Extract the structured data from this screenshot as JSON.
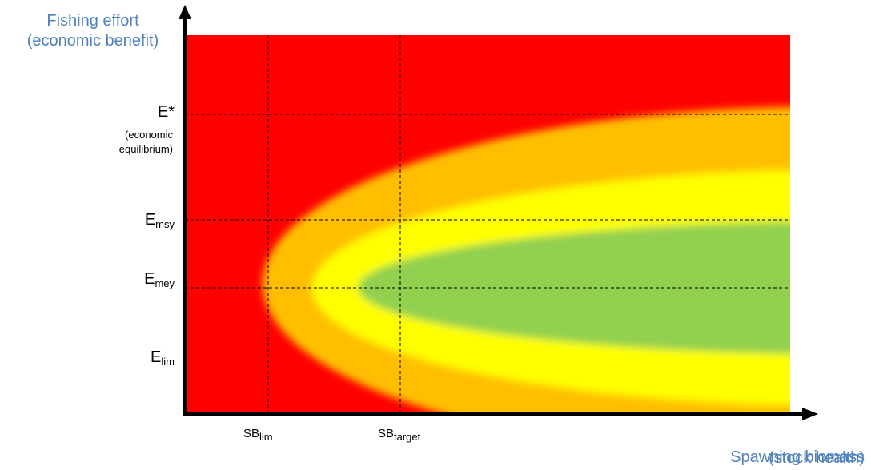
{
  "y_axis": {
    "title_line1": "Fishing effort",
    "title_line2": "(economic benefit)"
  },
  "x_axis": {
    "title_line1": "Spawning biomass",
    "title_line2": "(stock health)"
  },
  "effort_levels": {
    "e_star": "E*",
    "e_star_note_line1": "(economic",
    "e_star_note_line2": "equilibrium)",
    "e_msy_main": "E",
    "e_msy_sub": "msy",
    "e_mey_main": "E",
    "e_mey_sub": "mey",
    "e_lim_main": "E",
    "e_lim_sub": "lim"
  },
  "biomass_levels": {
    "sb_lim_main": "SB",
    "sb_lim_sub": "lim",
    "sb_target_main": "SB",
    "sb_target_sub": "target"
  },
  "colors": {
    "red_zone": "#ff0000",
    "orange_zone": "#ffbf00",
    "yellow_zone": "#ffff00",
    "green_zone": "#92d050",
    "axis_title": "#4f81bd",
    "axis": "#000000"
  }
}
